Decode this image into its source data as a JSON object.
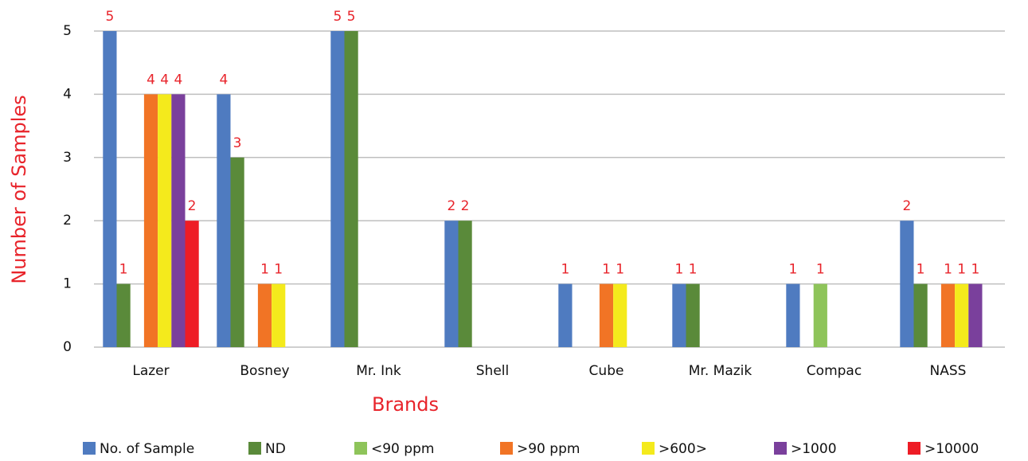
{
  "chart_data": {
    "type": "bar",
    "x_label": "Brands",
    "y_label": "Number of Samples",
    "categories": [
      "Lazer",
      "Bosney",
      "Mr. Ink",
      "Shell",
      "Cube",
      "Mr. Mazik",
      "Compac",
      "NASS"
    ],
    "series": [
      {
        "name": "No. of Sample",
        "color": "#4f7bc0",
        "values": [
          5,
          4,
          5,
          2,
          1,
          1,
          1,
          2
        ]
      },
      {
        "name": "ND",
        "color": "#5a8a3a",
        "values": [
          1,
          3,
          5,
          2,
          null,
          1,
          null,
          1
        ]
      },
      {
        "name": "<90 ppm",
        "color": "#8ec45a",
        "values": [
          null,
          null,
          null,
          null,
          null,
          null,
          1,
          null
        ]
      },
      {
        "name": ">90 ppm",
        "color": "#f17425",
        "values": [
          4,
          1,
          null,
          null,
          1,
          null,
          null,
          1
        ]
      },
      {
        "name": ">600>",
        "color": "#f4ea1c",
        "values": [
          4,
          1,
          null,
          null,
          1,
          null,
          null,
          1
        ]
      },
      {
        "name": ">1000",
        "color": "#7a409c",
        "values": [
          4,
          null,
          null,
          null,
          null,
          null,
          null,
          1
        ]
      },
      {
        "name": ">10000",
        "color": "#ee1c25",
        "values": [
          2,
          null,
          null,
          null,
          null,
          null,
          null,
          null
        ]
      }
    ],
    "ylim": [
      0,
      5
    ],
    "yticks": [
      0,
      1,
      2,
      3,
      4,
      5
    ],
    "grid": true,
    "legend": "bottom"
  }
}
